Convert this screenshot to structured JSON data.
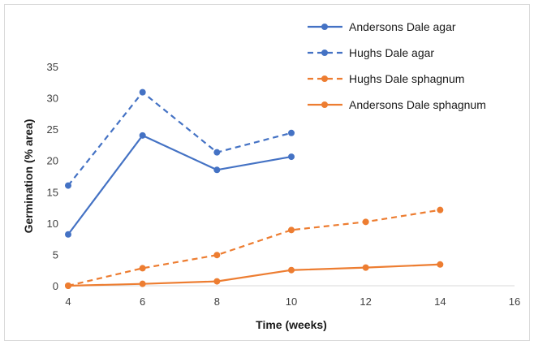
{
  "chart_data": {
    "type": "line",
    "title": "",
    "xlabel": "Time (weeks)",
    "ylabel": "Germination (% area)",
    "xlim": [
      4,
      16
    ],
    "ylim": [
      0,
      35
    ],
    "xticks": [
      4,
      6,
      8,
      10,
      12,
      14,
      16
    ],
    "yticks": [
      0,
      5,
      10,
      15,
      20,
      25,
      30,
      35
    ],
    "grid": false,
    "legend": "top-right",
    "series": [
      {
        "name": "Andersons Dale agar",
        "color": "#4472c4",
        "dash": "solid",
        "x": [
          4,
          6,
          8,
          10
        ],
        "y": [
          8.2,
          24.0,
          18.5,
          20.6
        ]
      },
      {
        "name": "Hughs Dale agar",
        "color": "#4472c4",
        "dash": "dashed",
        "x": [
          4,
          6,
          8,
          10
        ],
        "y": [
          16.0,
          30.9,
          21.3,
          24.4
        ]
      },
      {
        "name": "Hughs Dale sphagnum",
        "color": "#ed7d31",
        "dash": "dashed",
        "x": [
          4,
          6,
          8,
          10,
          12,
          14
        ],
        "y": [
          0,
          2.8,
          4.9,
          8.9,
          10.2,
          12.1
        ]
      },
      {
        "name": "Andersons Dale sphagnum",
        "color": "#ed7d31",
        "dash": "solid",
        "x": [
          4,
          6,
          8,
          10,
          12,
          14
        ],
        "y": [
          0,
          0.3,
          0.7,
          2.5,
          2.9,
          3.4
        ]
      }
    ]
  }
}
